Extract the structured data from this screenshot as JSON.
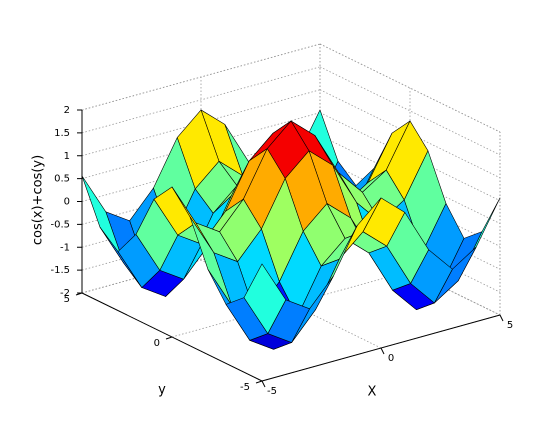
{
  "chart_data": {
    "type": "surface",
    "xlabel": "X",
    "ylabel": "y",
    "zlabel": "cos(x)+cos(y)",
    "x": [
      -5,
      -4,
      -3,
      -2,
      -1,
      0,
      1,
      2,
      3,
      4,
      5
    ],
    "y": [
      -5,
      -4,
      -3,
      -2,
      -1,
      0,
      1,
      2,
      3,
      4,
      5
    ],
    "z": [
      [
        0.56,
        -0.37,
        -0.71,
        -0.14,
        0.82,
        1.28,
        0.82,
        -0.14,
        -0.71,
        -0.37,
        0.56
      ],
      [
        -0.37,
        -1.3,
        -1.64,
        -1.07,
        -0.11,
        0.35,
        -0.11,
        -1.07,
        -1.64,
        -1.3,
        -0.37
      ],
      [
        -0.71,
        -1.64,
        -1.98,
        -1.41,
        -0.45,
        0.01,
        -0.45,
        -1.41,
        -1.98,
        -1.64,
        -0.71
      ],
      [
        -0.14,
        -1.07,
        -1.41,
        -0.84,
        0.12,
        0.58,
        0.12,
        -0.84,
        -1.41,
        -1.07,
        -0.14
      ],
      [
        0.82,
        -0.11,
        -0.45,
        0.12,
        1.08,
        1.54,
        1.08,
        0.12,
        -0.45,
        -0.11,
        0.82
      ],
      [
        1.28,
        0.35,
        0.01,
        0.58,
        1.54,
        2,
        1.54,
        0.58,
        0.01,
        0.35,
        1.28
      ],
      [
        0.82,
        -0.11,
        -0.45,
        0.12,
        1.08,
        1.54,
        1.08,
        0.12,
        -0.45,
        -0.11,
        0.82
      ],
      [
        -0.14,
        -1.07,
        -1.41,
        -0.84,
        0.12,
        0.58,
        0.12,
        -0.84,
        -1.41,
        -1.07,
        -0.14
      ],
      [
        -0.71,
        -1.64,
        -1.98,
        -1.41,
        -0.45,
        0.01,
        -0.45,
        -1.41,
        -1.98,
        -1.64,
        -0.71
      ],
      [
        -0.37,
        -1.3,
        -1.64,
        -1.07,
        -0.11,
        0.35,
        -0.11,
        -1.07,
        -1.64,
        -1.3,
        -0.37
      ],
      [
        0.56,
        -0.37,
        -0.71,
        -0.14,
        0.82,
        1.28,
        0.82,
        -0.14,
        -0.71,
        -0.37,
        0.56
      ]
    ],
    "xlim": [
      -5,
      5
    ],
    "ylim": [
      -5,
      5
    ],
    "zlim": [
      -2,
      2
    ],
    "xticks": [
      -5,
      0,
      5
    ],
    "yticks": [
      -5,
      0,
      5
    ],
    "zticks": [
      -2,
      -1.5,
      -1,
      -0.5,
      0,
      0.5,
      1,
      1.5,
      2
    ],
    "grid": true,
    "colormap": "jet",
    "edgecolor": "#000000"
  }
}
